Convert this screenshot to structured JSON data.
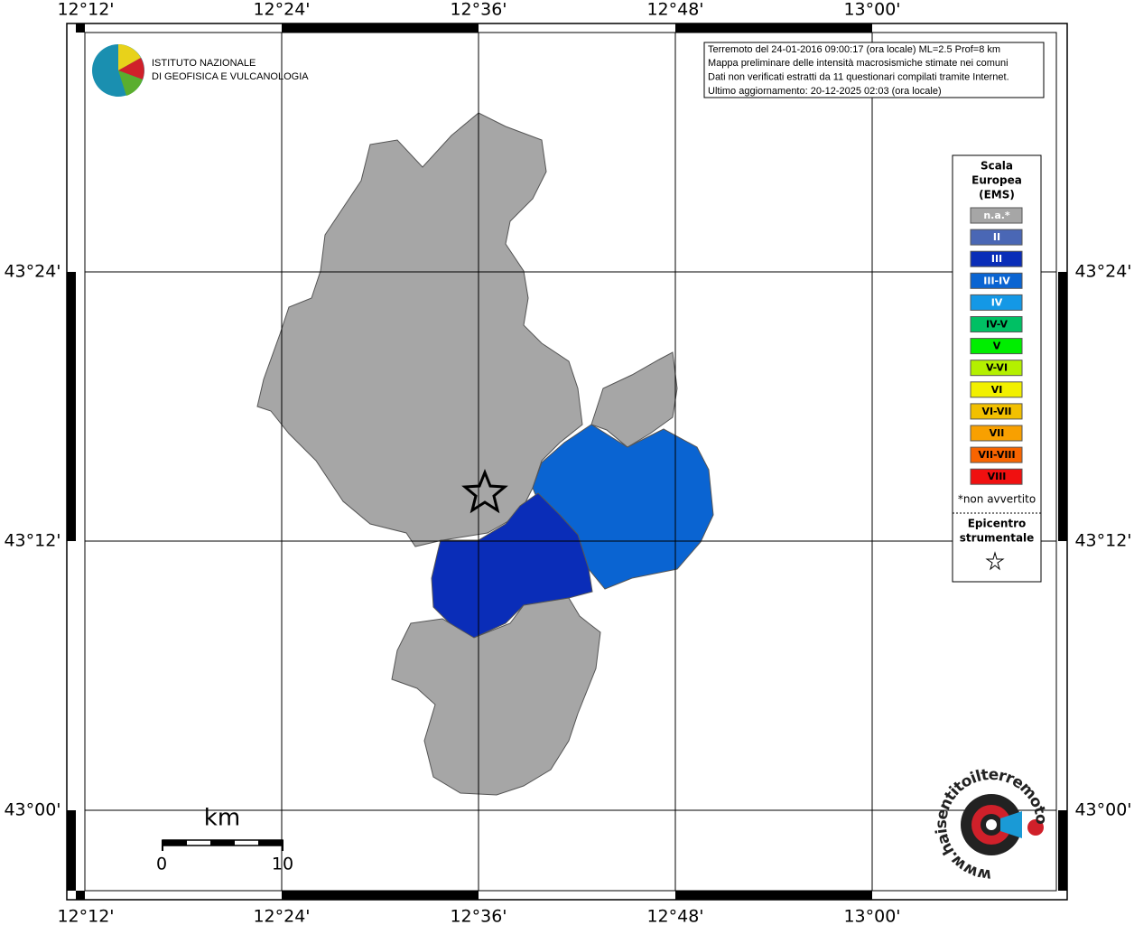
{
  "map": {
    "longitude_labels": [
      "12°12'",
      "12°24'",
      "12°36'",
      "12°48'",
      "13°00'"
    ],
    "latitude_labels": [
      "43°24'",
      "43°12'",
      "43°00'"
    ],
    "logo": [
      "ISTITUTO NAZIONALE",
      "DI GEOFISICA E VULCANOLOGIA"
    ],
    "info": [
      "Terremoto del 24-01-2016 09:00:17 (ora locale) ML=2.5 Prof=8 km",
      "Mappa preliminare delle intensità macrosismiche stimate nei comuni",
      "Dati non verificati estratti da 11 questionari compilati tramite Internet.",
      "Ultimo aggiornamento: 20-12-2025 02:03 (ora locale)"
    ],
    "legend": {
      "title": [
        "Scala",
        "Europea",
        "(EMS)"
      ],
      "items": [
        {
          "label": "n.a.*",
          "color": "#a6a6a6"
        },
        {
          "label": "II",
          "color": "#4a67b5"
        },
        {
          "label": "III",
          "color": "#0a2db8"
        },
        {
          "label": "III-IV",
          "color": "#0a64d2"
        },
        {
          "label": "IV",
          "color": "#1498e6"
        },
        {
          "label": "IV-V",
          "color": "#00c064"
        },
        {
          "label": "V",
          "color": "#00ee00"
        },
        {
          "label": "V-VI",
          "color": "#b4f000"
        },
        {
          "label": "VI",
          "color": "#f2f000"
        },
        {
          "label": "VI-VII",
          "color": "#f2c000"
        },
        {
          "label": "VII",
          "color": "#f8a000"
        },
        {
          "label": "VII-VIII",
          "color": "#f86400"
        },
        {
          "label": "VIII",
          "color": "#f01010"
        }
      ],
      "note": "*non avvertito",
      "epicentre": [
        "Epicentro",
        "strumentale"
      ]
    },
    "scale_bar": {
      "unit": "km",
      "labels": [
        "0",
        "10"
      ]
    },
    "website": "www.haisentitoilterremoto.it"
  }
}
